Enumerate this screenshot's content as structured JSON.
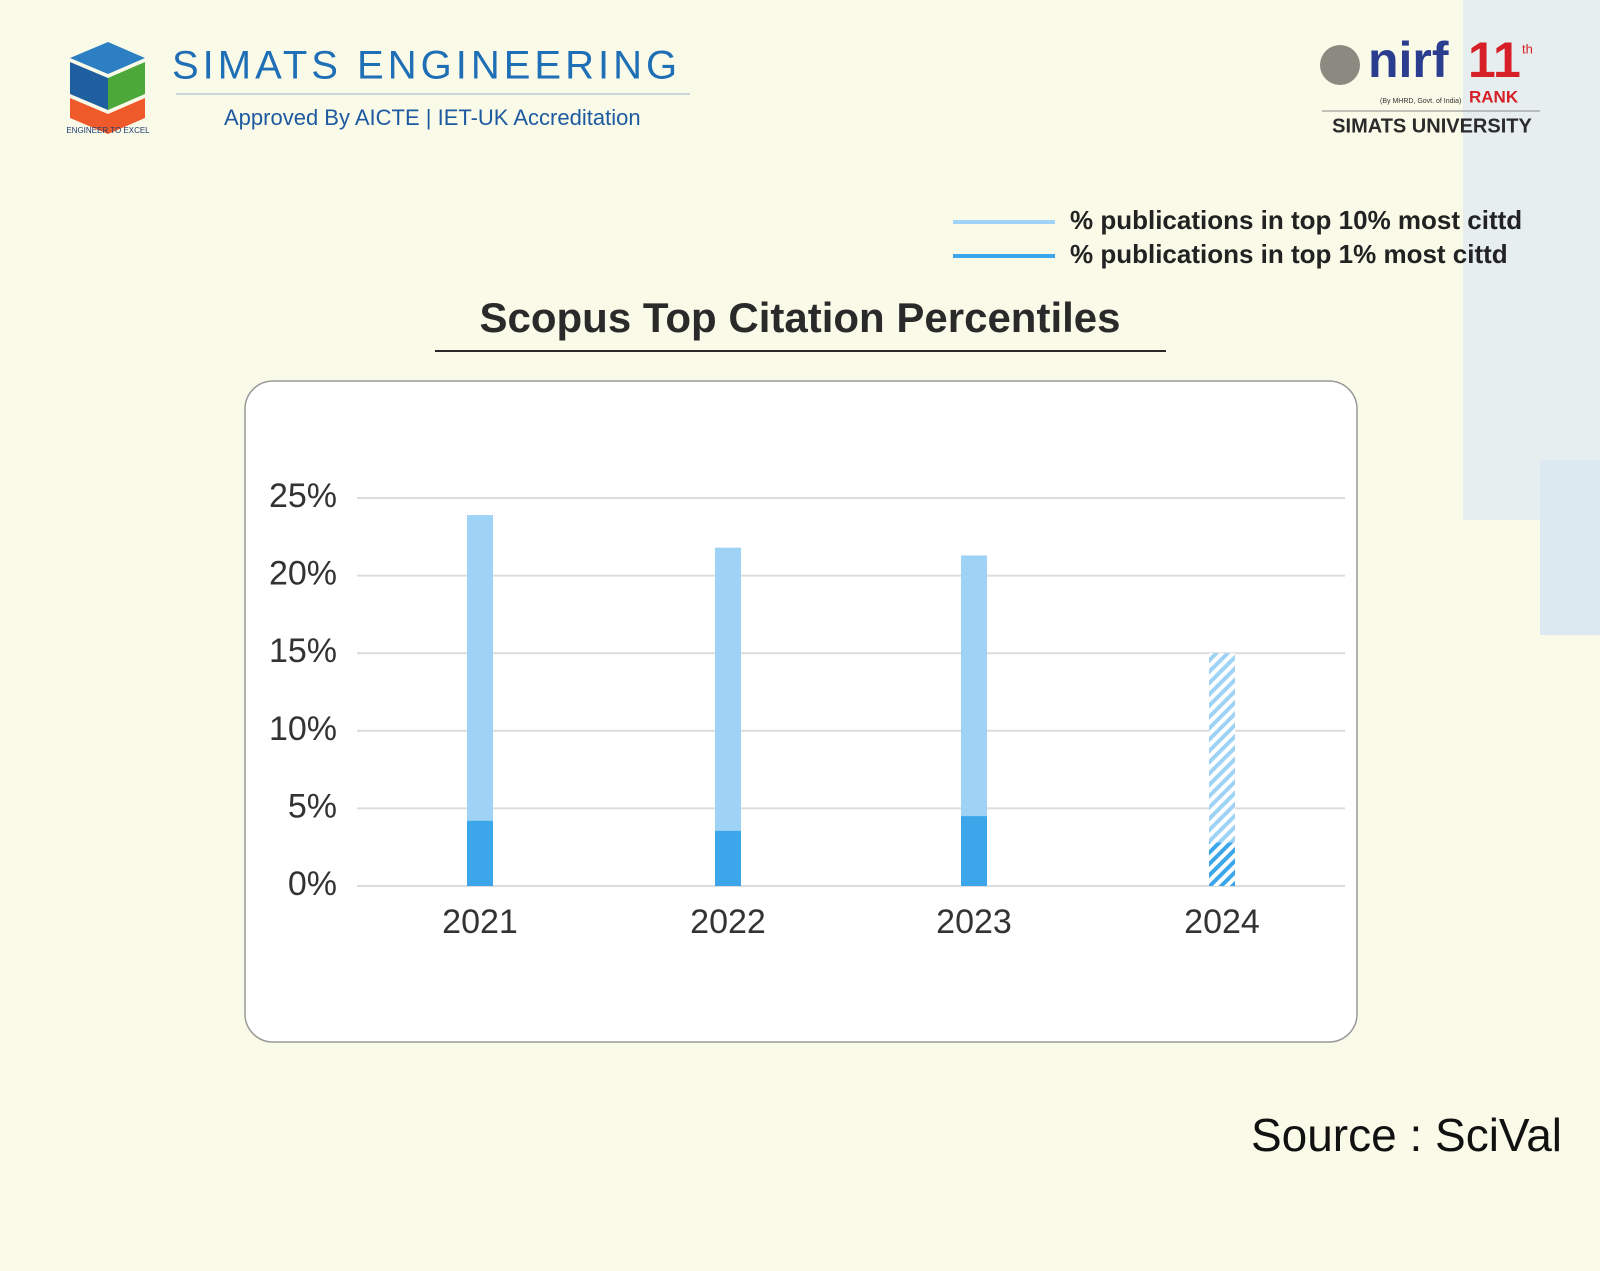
{
  "header": {
    "brand": "SIMATS ENGINEERING",
    "tagline": "Approved By AICTE | IET-UK Accreditation",
    "motto": "ENGINEER TO EXCEL",
    "nirf": "nirf",
    "rank": "11",
    "rank_suffix": "th",
    "rank_label": "RANK",
    "nirf_note": "(By MHRD, Govt. of India)",
    "university": "SIMATS UNIVERSITY"
  },
  "source": "Source : SciVal",
  "chart_data": {
    "type": "bar",
    "title": "Scopus Top Citation Percentiles",
    "categories": [
      "2021",
      "2022",
      "2023",
      "2024"
    ],
    "series": [
      {
        "name": "% publications in top 10% most cittd",
        "color": "#9fd3f5",
        "values": [
          23.9,
          21.8,
          21.3,
          15.0
        ]
      },
      {
        "name": "% publications in top 1% most cittd",
        "color": "#3ba6ea",
        "values": [
          4.2,
          3.55,
          4.5,
          2.8
        ]
      }
    ],
    "hatched": [
      false,
      false,
      false,
      true
    ],
    "ylim": [
      0,
      25
    ],
    "yticks": [
      {
        "value": 0,
        "label": "0%"
      },
      {
        "value": 5,
        "label": "5%"
      },
      {
        "value": 10,
        "label": "10%"
      },
      {
        "value": 15,
        "label": "15%"
      },
      {
        "value": 20,
        "label": "20%"
      },
      {
        "value": 25,
        "label": "25%"
      }
    ],
    "grid": true,
    "legend": "top-right"
  }
}
